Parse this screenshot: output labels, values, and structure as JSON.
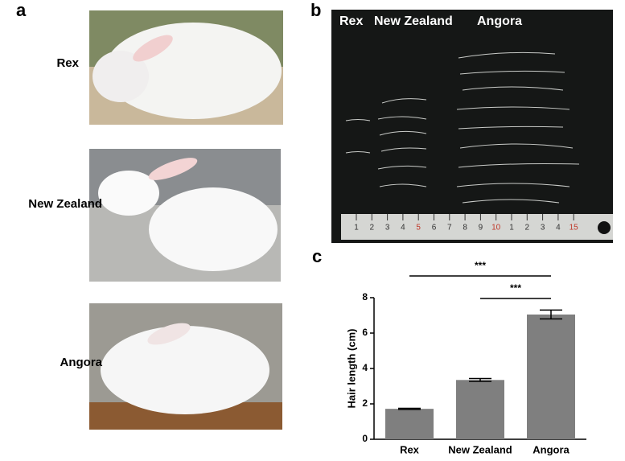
{
  "panel_labels": [
    "a",
    "b",
    "c"
  ],
  "photos": {
    "labels": [
      "Rex",
      "New Zealand",
      "Angora"
    ]
  },
  "hair_panel": {
    "labels": [
      "Rex",
      "New Zealand",
      "Angora"
    ],
    "ruler_labels": [
      "1",
      "2",
      "3",
      "4",
      "5",
      "6",
      "7",
      "8",
      "9",
      "10",
      "1",
      "2",
      "3",
      "4",
      "15"
    ]
  },
  "chart_data": {
    "type": "bar",
    "y_label": "Hair length (cm)",
    "categories": [
      "Rex",
      "New Zealand",
      "Angora"
    ],
    "values": [
      1.72,
      3.35,
      7.05
    ],
    "errors": [
      0.03,
      0.08,
      0.25
    ],
    "color": "#7f7f7f",
    "ylim": [
      0,
      8
    ],
    "yticks": [
      0,
      2,
      4,
      6,
      8
    ],
    "annotations": [
      "***",
      "***"
    ]
  }
}
